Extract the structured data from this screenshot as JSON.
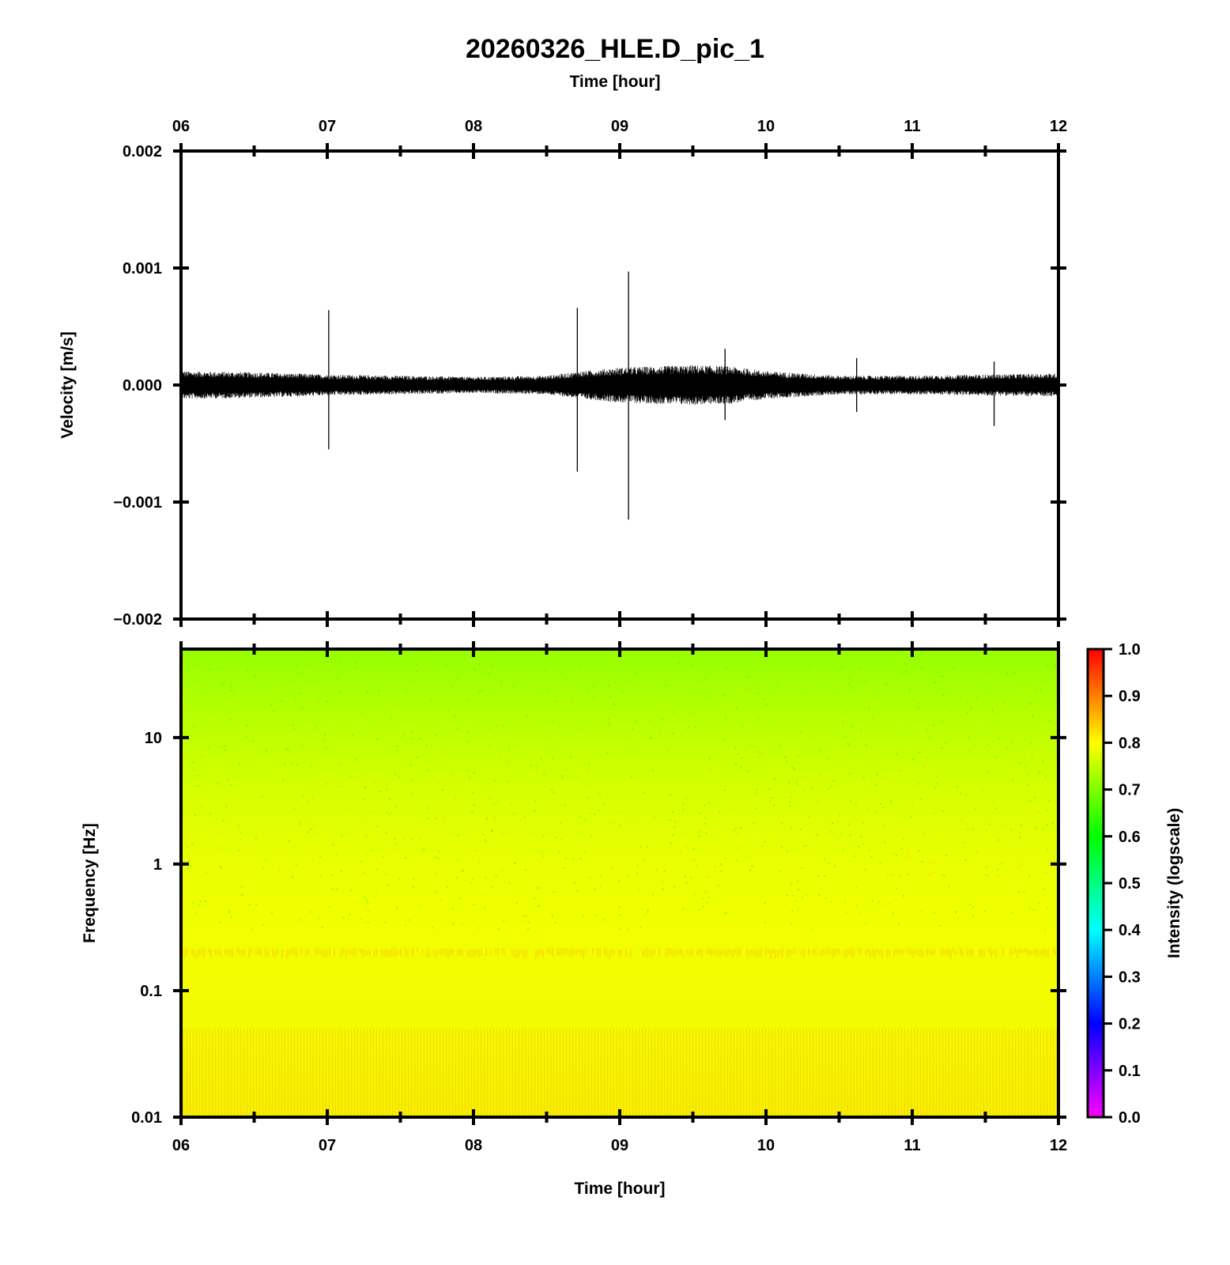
{
  "title": "20260326_HLE.D_pic_1",
  "top_xlabel": "Time [hour]",
  "bottom_xlabel": "Time [hour]",
  "chart_data": [
    {
      "type": "line",
      "panel": "waveform",
      "ylabel": "Velocity [m/s]",
      "xlabel": "Time [hour]",
      "xlim": [
        6,
        12
      ],
      "ylim": [
        -0.002,
        0.002
      ],
      "x_tick_labels": [
        "06",
        "07",
        "08",
        "09",
        "10",
        "11",
        "12"
      ],
      "y_tick_labels": [
        "0.002",
        "0.001",
        "0.000",
        "−0.001",
        "−0.002"
      ],
      "noise_envelope": {
        "x": [
          6.0,
          6.5,
          7.0,
          7.5,
          8.0,
          8.5,
          8.75,
          9.0,
          9.25,
          9.5,
          9.75,
          10.0,
          10.5,
          11.0,
          11.5,
          12.0
        ],
        "y_amplitude": [
          0.00012,
          0.00011,
          9e-05,
          8e-05,
          7e-05,
          8e-05,
          0.00012,
          0.00015,
          0.00016,
          0.00017,
          0.00016,
          0.00012,
          8e-05,
          8e-05,
          9e-05,
          0.0001
        ]
      },
      "spikes": [
        {
          "x": 7.01,
          "max": 0.00064,
          "min": -0.00055
        },
        {
          "x": 8.71,
          "max": 0.00066,
          "min": -0.00074
        },
        {
          "x": 9.06,
          "max": 0.00097,
          "min": -0.00115
        },
        {
          "x": 9.72,
          "max": 0.00031,
          "min": -0.0003
        },
        {
          "x": 10.62,
          "max": 0.00023,
          "min": -0.00023
        },
        {
          "x": 11.56,
          "max": 0.0002,
          "min": -0.00035
        }
      ],
      "line_color": "#000000"
    },
    {
      "type": "heatmap",
      "panel": "spectrogram",
      "ylabel": "Frequency [Hz]",
      "xlabel": "Time [hour]",
      "xlim": [
        6,
        12
      ],
      "ylim": [
        0.01,
        50
      ],
      "y_scale": "log",
      "x_tick_labels": [
        "06",
        "07",
        "08",
        "09",
        "10",
        "11",
        "12"
      ],
      "y_tick_labels": [
        "10",
        "1",
        "0.1",
        "0.01"
      ],
      "intensity_profile": {
        "frequency_hz": [
          50,
          20,
          10,
          5,
          2,
          1,
          0.5,
          0.2,
          0.1,
          0.05,
          0.01
        ],
        "intensity": [
          0.7,
          0.72,
          0.74,
          0.76,
          0.78,
          0.79,
          0.8,
          0.82,
          0.8,
          0.8,
          0.82
        ]
      },
      "colorbar": {
        "label": "Intensity (logscale)",
        "range": [
          0.0,
          1.0
        ],
        "tick_labels": [
          "1.0",
          "0.9",
          "0.8",
          "0.7",
          "0.6",
          "0.5",
          "0.4",
          "0.3",
          "0.2",
          "0.1",
          "0.0"
        ],
        "colormap": [
          "#ff00ff",
          "#0000ff",
          "#00ffff",
          "#00ff00",
          "#ffff00",
          "#ff0000"
        ]
      }
    }
  ]
}
